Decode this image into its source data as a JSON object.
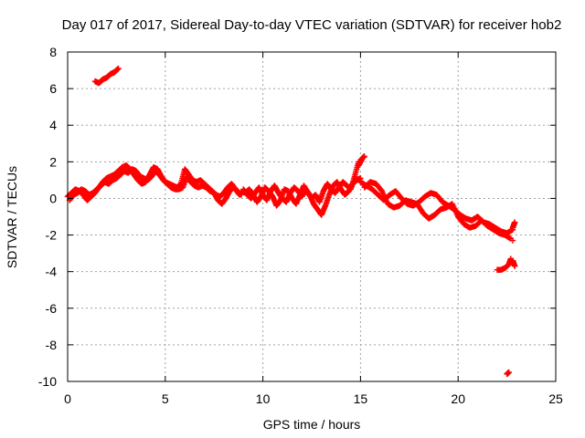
{
  "chart_data": {
    "type": "scatter",
    "title": "Day 017 of 2017, Sidereal Day-to-day VTEC variation (SDTVAR) for receiver hob2",
    "xlabel": "GPS time / hours",
    "ylabel": "SDTVAR / TECUs",
    "xlim": [
      0,
      25
    ],
    "ylim": [
      -10,
      8
    ],
    "xticks": [
      0,
      5,
      10,
      15,
      20,
      25
    ],
    "yticks": [
      -10,
      -8,
      -6,
      -4,
      -2,
      0,
      2,
      4,
      6,
      8
    ],
    "grid": true,
    "marker": "plus",
    "series": [
      {
        "name": "SDTVAR",
        "color": "#ff0000",
        "segments": [
          {
            "x": [
              0,
              0.2,
              0.4,
              0.6,
              0.8,
              1.0,
              1.2,
              1.4,
              1.6,
              1.8,
              2.0,
              2.2,
              2.4,
              2.6,
              2.8,
              3.0,
              3.2,
              3.4,
              3.6,
              3.8,
              4.0,
              4.2,
              4.4,
              4.6,
              4.8,
              5.0,
              5.2,
              5.4,
              5.6,
              5.8,
              6.0,
              6.2,
              6.4,
              6.6,
              6.8,
              7.0,
              7.2,
              7.4,
              7.6,
              7.8,
              8.0,
              8.2,
              8.4,
              8.6,
              8.8,
              9.0
            ],
            "y": [
              0.1,
              0.3,
              0.5,
              0.4,
              0.2,
              -0.1,
              0.1,
              0.3,
              0.6,
              0.9,
              1.1,
              1.2,
              1.3,
              1.5,
              1.7,
              1.8,
              1.6,
              1.3,
              1.0,
              0.8,
              0.9,
              1.3,
              1.7,
              1.6,
              1.2,
              0.9,
              0.8,
              0.7,
              0.6,
              0.8,
              1.6,
              1.3,
              1.0,
              0.9,
              1.0,
              0.8,
              0.6,
              0.4,
              0.2,
              0.1,
              0.3,
              0.6,
              0.8,
              0.5,
              0.2,
              0.4
            ]
          },
          {
            "x": [
              0.1,
              0.3,
              0.5,
              0.7,
              0.9,
              1.1,
              1.3,
              1.5,
              1.7,
              1.9,
              2.1,
              2.3,
              2.5,
              2.7,
              2.9,
              3.1,
              3.3,
              3.5,
              3.7,
              3.9,
              4.1,
              4.3,
              4.5,
              4.7,
              4.9,
              5.1,
              5.3,
              5.5,
              5.7,
              5.9,
              6.1,
              6.3,
              6.5,
              6.7,
              6.9,
              7.1,
              7.3,
              7.5,
              7.7,
              7.9,
              8.1,
              8.3,
              8.5,
              8.7,
              8.9
            ],
            "y": [
              -0.1,
              0.2,
              0.3,
              0.5,
              0.4,
              0.2,
              0.3,
              0.5,
              0.7,
              0.9,
              0.8,
              1.0,
              1.1,
              1.3,
              1.5,
              1.4,
              1.6,
              1.5,
              1.2,
              1.1,
              1.0,
              1.2,
              1.5,
              1.3,
              1.0,
              0.8,
              0.6,
              0.5,
              0.5,
              0.6,
              1.2,
              0.9,
              0.7,
              0.6,
              0.7,
              0.6,
              0.4,
              0.3,
              -0.1,
              -0.3,
              0.0,
              0.4,
              0.6,
              0.4,
              0.2
            ]
          },
          {
            "x": [
              9.0,
              9.2,
              9.4,
              9.6,
              9.8,
              10.0,
              10.2,
              10.4,
              10.6,
              10.8,
              11.0,
              11.2,
              11.4,
              11.6,
              11.8,
              12.0,
              12.2,
              12.4,
              12.6,
              12.8,
              13.0,
              13.2,
              13.4,
              13.6,
              13.8,
              14.0,
              14.2,
              14.4,
              14.6,
              14.8,
              15.0
            ],
            "y": [
              0.5,
              0.2,
              0.0,
              0.3,
              0.6,
              0.2,
              -0.1,
              0.4,
              0.7,
              0.3,
              0.0,
              -0.2,
              0.3,
              0.6,
              0.4,
              0.1,
              0.5,
              0.2,
              -0.3,
              -0.6,
              -0.9,
              -0.4,
              0.2,
              0.7,
              0.9,
              0.5,
              0.2,
              0.4,
              0.8,
              1.0,
              1.1
            ]
          },
          {
            "x": [
              9.1,
              9.3,
              9.5,
              9.7,
              9.9,
              10.1,
              10.3,
              10.5,
              10.7,
              10.9,
              11.1,
              11.3,
              11.5,
              11.7,
              11.9,
              12.1,
              12.3,
              12.5,
              12.7,
              12.9,
              13.1,
              13.3,
              13.5,
              13.7,
              13.9,
              14.1,
              14.3,
              14.5,
              14.7,
              14.9
            ],
            "y": [
              0.3,
              0.5,
              0.2,
              -0.2,
              0.1,
              0.6,
              0.4,
              0.1,
              -0.4,
              -0.1,
              0.5,
              0.4,
              0.0,
              -0.3,
              0.2,
              0.7,
              0.3,
              0.0,
              0.2,
              -0.2,
              0.4,
              0.8,
              0.5,
              0.3,
              0.6,
              0.9,
              0.7,
              0.5,
              1.2,
              2.0
            ]
          },
          {
            "x": [
              14.9,
              15.0,
              15.1,
              15.2
            ],
            "y": [
              1.8,
              2.0,
              2.2,
              2.3
            ]
          },
          {
            "x": [
              15.0,
              15.3,
              15.6,
              15.9,
              16.2,
              16.5,
              16.8,
              17.1,
              17.4,
              17.7,
              18.0,
              18.3,
              18.6,
              18.9,
              19.2,
              19.5,
              19.8,
              20.1,
              20.4,
              20.7,
              21.0,
              21.3,
              21.6,
              21.9,
              22.2,
              22.5,
              22.8
            ],
            "y": [
              0.9,
              0.7,
              0.5,
              0.2,
              -0.1,
              0.2,
              0.4,
              0.0,
              -0.3,
              -0.4,
              -0.2,
              0.1,
              0.3,
              0.2,
              -0.2,
              -0.4,
              -0.6,
              -0.9,
              -1.1,
              -1.2,
              -1.0,
              -1.3,
              -1.4,
              -1.6,
              -1.8,
              -1.9,
              -1.7
            ]
          },
          {
            "x": [
              15.2,
              15.5,
              15.8,
              16.1,
              16.4,
              16.7,
              17.0,
              17.3,
              17.6,
              17.9,
              18.2,
              18.5,
              18.8,
              19.1,
              19.4,
              19.7,
              20.0,
              20.3,
              20.6,
              20.9,
              21.2,
              21.5,
              21.8,
              22.1,
              22.4,
              22.7
            ],
            "y": [
              0.6,
              0.9,
              0.8,
              0.4,
              -0.3,
              -0.5,
              -0.4,
              -0.1,
              -0.2,
              -0.3,
              -0.8,
              -1.1,
              -0.9,
              -0.6,
              -0.5,
              -0.3,
              -1.0,
              -1.4,
              -1.6,
              -1.5,
              -1.2,
              -1.5,
              -1.7,
              -1.9,
              -2.0,
              -2.2
            ]
          },
          {
            "x": [
              1.4,
              1.6,
              1.8,
              2.0,
              2.2,
              2.4,
              2.6
            ],
            "y": [
              6.4,
              6.3,
              6.5,
              6.6,
              6.8,
              6.9,
              7.1
            ]
          },
          {
            "x": [
              22.0,
              22.2,
              22.4,
              22.6,
              22.7
            ],
            "y": [
              -3.9,
              -3.9,
              -3.8,
              -3.6,
              -3.3
            ]
          },
          {
            "x": [
              22.8,
              22.9
            ],
            "y": [
              -3.4,
              -3.7
            ]
          },
          {
            "x": [
              22.8,
              22.9
            ],
            "y": [
              -1.6,
              -1.3
            ]
          },
          {
            "x": [
              22.8
            ],
            "y": [
              -2.3
            ]
          },
          {
            "x": [
              22.5,
              22.6
            ],
            "y": [
              -9.6,
              -9.5
            ]
          }
        ]
      }
    ]
  }
}
